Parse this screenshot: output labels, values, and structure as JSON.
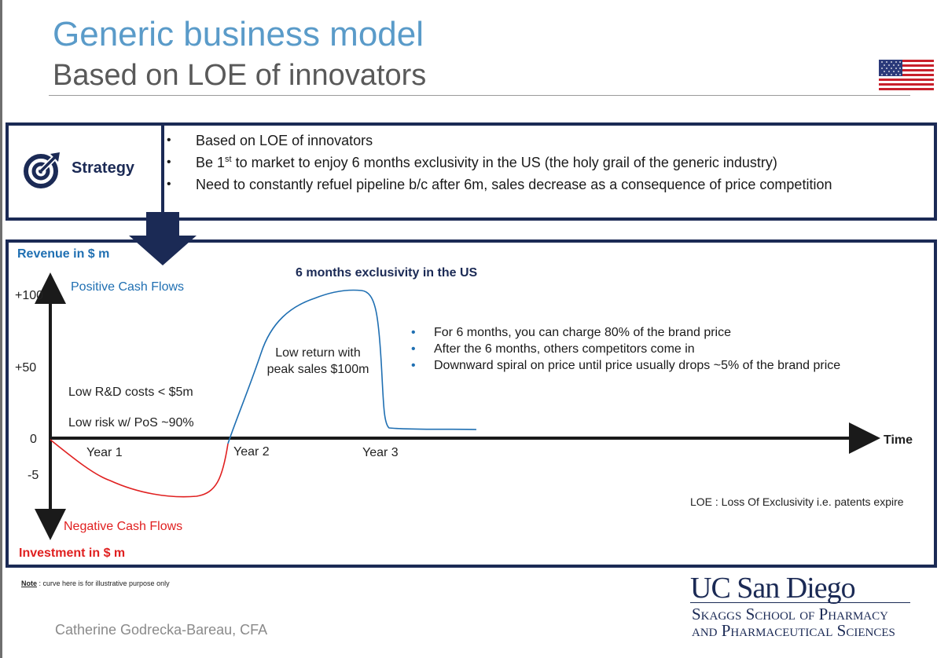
{
  "header": {
    "title": "Generic business model",
    "subtitle": "Based on LOE of innovators"
  },
  "strategy": {
    "label": "Strategy",
    "icon": "target-icon",
    "bullets": [
      {
        "pre": "Based on LOE of innovators",
        "sup": "",
        "post": ""
      },
      {
        "pre": "Be 1",
        "sup": "st",
        "post": " to market to enjoy 6 months exclusivity in the US (the holy grail of the generic industry)"
      },
      {
        "pre": "Need to constantly refuel pipeline b/c after 6m, sales decrease as a consequence of price competition",
        "sup": "",
        "post": ""
      }
    ]
  },
  "diagram": {
    "y_axis_top_label": "Revenue in $ m",
    "y_axis_bottom_label": "Investment in $ m",
    "positive_label": "Positive Cash Flows",
    "negative_label": "Negative Cash Flows",
    "x_axis_label": "Time",
    "y_ticks": [
      "+100",
      "+50",
      "0",
      "-5"
    ],
    "x_ticks": [
      "Year 1",
      "Year 2",
      "Year 3"
    ],
    "exclusivity_label": "6 months exclusivity in the US",
    "low_return_label": "Low return with peak sales $100m",
    "rd_note": "Low R&D costs < $5m",
    "risk_note": "Low risk w/ PoS ~90%",
    "bullets": [
      "For 6 months, you can charge 80% of the brand price",
      "After the 6 months, others competitors come in",
      "Downward spiral on price until price usually drops ~5% of the brand price"
    ],
    "loe_definition": "LOE : Loss Of Exclusivity i.e. patents expire",
    "colors": {
      "positive": "#1f6fb2",
      "negative": "#e02020",
      "frame": "#1b2a55"
    }
  },
  "footer": {
    "note_key": "Note",
    "note_text": " : curve here is for illustrative purpose only",
    "author": "Catherine Godrecka-Bareau, CFA",
    "logo_name": "UC San Diego",
    "logo_line1": "Skaggs School of Pharmacy",
    "logo_line2": "and Pharmaceutical Sciences"
  }
}
